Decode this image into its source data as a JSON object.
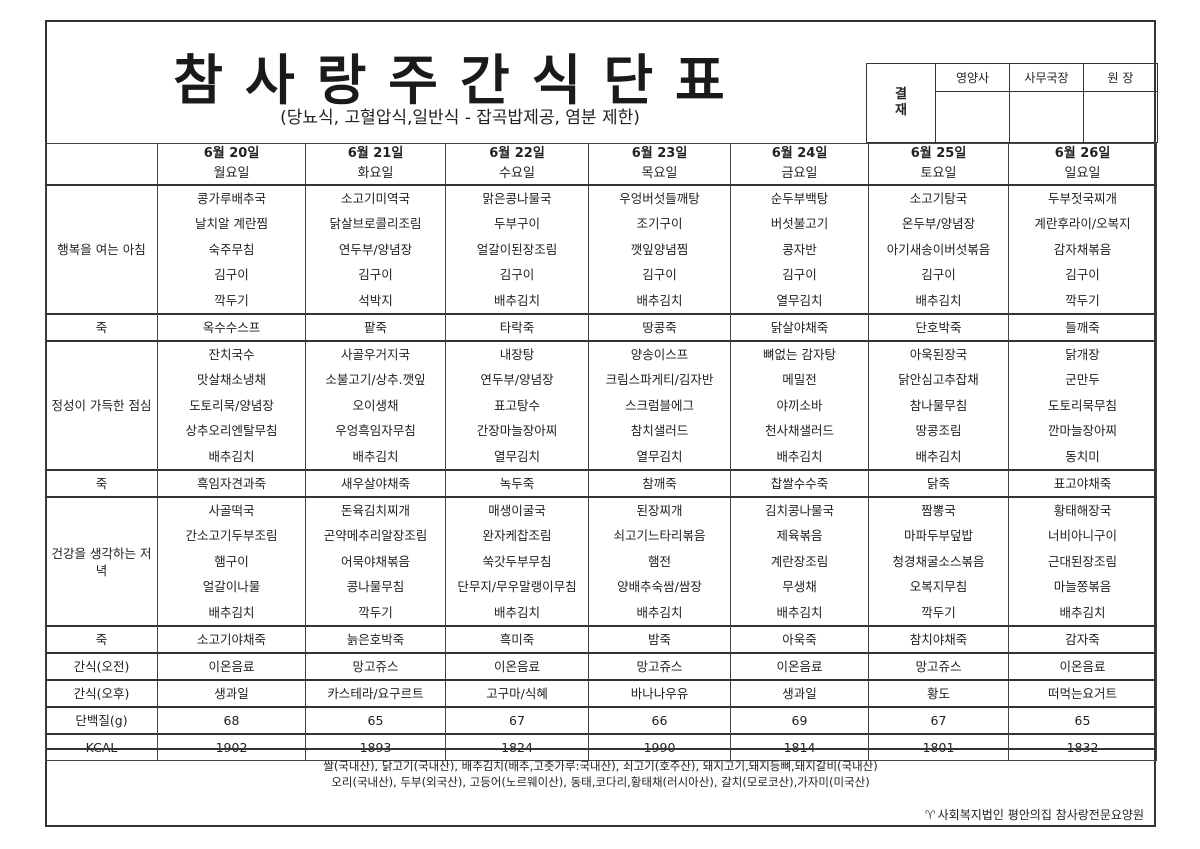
{
  "title": "참사랑주간식단표",
  "subtitle": "(당뇨식, 고혈압식,일반식 - 잡곡밥제공, 염분 제한)",
  "approval": {
    "label": "결\n재",
    "roles": [
      "영양사",
      "사무국장",
      "원  장"
    ]
  },
  "days": [
    {
      "date": "6월 20일",
      "weekday": "월요일"
    },
    {
      "date": "6월 21일",
      "weekday": "화요일"
    },
    {
      "date": "6월 22일",
      "weekday": "수요일"
    },
    {
      "date": "6월 23일",
      "weekday": "목요일"
    },
    {
      "date": "6월 24일",
      "weekday": "금요일"
    },
    {
      "date": "6월 25일",
      "weekday": "토요일"
    },
    {
      "date": "6월 26일",
      "weekday": "일요일"
    }
  ],
  "rows": [
    {
      "label": "행복을 여는 아침",
      "type": "meal",
      "cells": [
        [
          "콩가루배추국",
          "날치알 계란찜",
          "숙주무침",
          "김구이",
          "깍두기"
        ],
        [
          "소고기미역국",
          "닭살브로콜리조림",
          "연두부/양념장",
          "김구이",
          "석박지"
        ],
        [
          "맑은콩나물국",
          "두부구이",
          "얼갈이된장조림",
          "김구이",
          "배추김치"
        ],
        [
          "우엉버섯들깨탕",
          "조기구이",
          "깻잎양념찜",
          "김구이",
          "배추김치"
        ],
        [
          "순두부백탕",
          "버섯불고기",
          "콩자반",
          "김구이",
          "열무김치"
        ],
        [
          "소고기탕국",
          "온두부/양념장",
          "아기새송이버섯볶음",
          "김구이",
          "배추김치"
        ],
        [
          "두부젓국찌개",
          "계란후라이/오복지",
          "감자채볶음",
          "김구이",
          "깍두기"
        ]
      ]
    },
    {
      "label": "죽",
      "type": "single",
      "cells": [
        "옥수수스프",
        "팥죽",
        "타락죽",
        "땅콩죽",
        "닭살야채죽",
        "단호박죽",
        "들깨죽"
      ]
    },
    {
      "label": "정성이 가득한 점심",
      "type": "meal",
      "cells": [
        [
          "잔치국수",
          "맛살채소냉채",
          "도토리묵/양념장",
          "상추오리엔탈무침",
          "배추김치"
        ],
        [
          "사골우거지국",
          "소불고기/상추.깻잎",
          "오이생채",
          "우엉흑임자무침",
          "배추김치"
        ],
        [
          "내장탕",
          "연두부/양념장",
          "표고탕수",
          "간장마늘장아찌",
          "열무김치"
        ],
        [
          "양송이스프",
          "크림스파게티/김자반",
          "스크럼블에그",
          "참치샐러드",
          "열무김치"
        ],
        [
          "뼈없는 감자탕",
          "메밀전",
          "야끼소바",
          "천사채샐러드",
          "배추김치"
        ],
        [
          "아욱된장국",
          "닭안심고추잡채",
          "참나물무침",
          "땅콩조림",
          "배추김치"
        ],
        [
          "닭개장",
          "군만두",
          "도토리묵무침",
          "깐마늘장아찌",
          "동치미"
        ]
      ]
    },
    {
      "label": "죽",
      "type": "single",
      "cells": [
        "흑임자견과죽",
        "새우살야채죽",
        "녹두죽",
        "참깨죽",
        "찹쌀수수죽",
        "닭죽",
        "표고야채죽"
      ]
    },
    {
      "label": "건강을 생각하는 저녁",
      "type": "meal",
      "cells": [
        [
          "사골떡국",
          "간소고기두부조림",
          "햄구이",
          "얼갈이나물",
          "배추김치"
        ],
        [
          "돈육김치찌개",
          "곤약메추리알장조림",
          "어묵야채볶음",
          "콩나물무침",
          "깍두기"
        ],
        [
          "매생이굴국",
          "완자케찹조림",
          "쑥갓두부무침",
          "단무지/무우말랭이무침",
          "배추김치"
        ],
        [
          "된장찌개",
          "쇠고기느타리볶음",
          "햄전",
          "양배추숙쌈/쌈장",
          "배추김치"
        ],
        [
          "김치콩나물국",
          "제육볶음",
          "계란장조림",
          "무생채",
          "배추김치"
        ],
        [
          "짬뽕국",
          "마파두부덮밥",
          "청경채굴소스볶음",
          "오복지무침",
          "깍두기"
        ],
        [
          "황태해장국",
          "너비아니구이",
          "근대된장조림",
          "마늘쫑볶음",
          "배추김치"
        ]
      ]
    },
    {
      "label": "죽",
      "type": "single",
      "cells": [
        "소고기야채죽",
        "늙은호박죽",
        "흑미죽",
        "밤죽",
        "아욱죽",
        "참치야채죽",
        "감자죽"
      ]
    },
    {
      "label": "간식(오전)",
      "type": "single",
      "cells": [
        "이온음료",
        "망고쥬스",
        "이온음료",
        "망고쥬스",
        "이온음료",
        "망고쥬스",
        "이온음료"
      ]
    },
    {
      "label": "간식(오후)",
      "type": "single",
      "cells": [
        "생과일",
        "카스테라/요구르트",
        "고구마/식혜",
        "바나나우유",
        "생과일",
        "황도",
        "떠먹는요거트"
      ]
    },
    {
      "label": "단백질(g)",
      "type": "single",
      "cells": [
        "68",
        "65",
        "67",
        "66",
        "69",
        "67",
        "65"
      ]
    },
    {
      "label": "KCAL",
      "type": "single",
      "cells": [
        "1902",
        "1893",
        "1824",
        "1990",
        "1814",
        "1801",
        "1832"
      ]
    }
  ],
  "footer": {
    "origin_line1": "쌀(국내산), 닭고기(국내산), 배추김치(배추,고춧가루:국내산), 쇠고기(호주산), 돼지고기,돼지등뼈,돼지갈비(국내산)",
    "origin_line2": "오리(국내산), 두부(외국산), 고등어(노르웨이산), 동태,코다리,황태채(러시아산), 갈치(모로코산),가자미(미국산)",
    "organization": "사회복지법인 평안의집 참사랑전문요양원"
  }
}
